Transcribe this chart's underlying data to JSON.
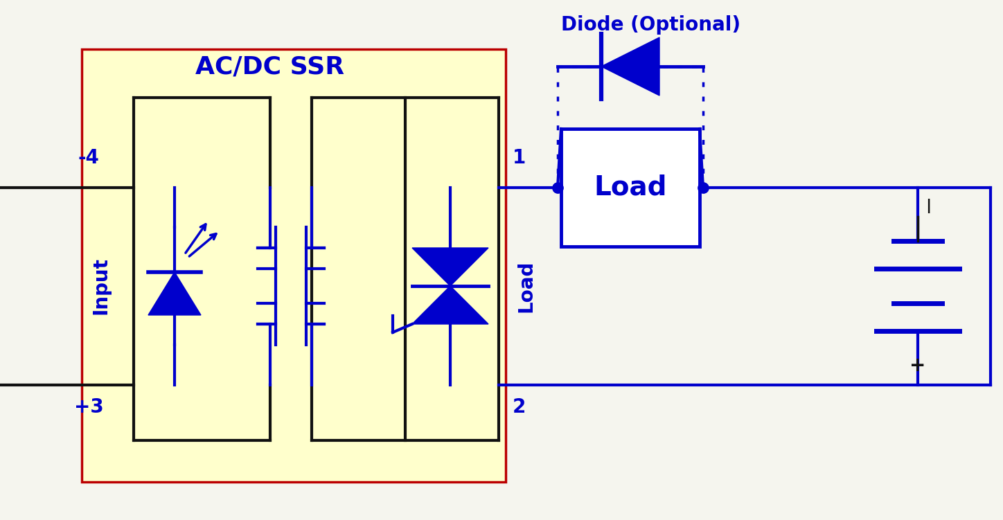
{
  "blue": "#0000CC",
  "black": "#111111",
  "red_border": "#BB0000",
  "yellow_fill": "#FFFFCC",
  "fig_bg": "#F5F5EE",
  "wire_lw": 3.0,
  "diode_label": "Diode (Optional)",
  "ssr_label": "AC/DC SSR",
  "input_label": "Input",
  "load_vert_label": "Load",
  "load_box_label": "Load",
  "minus4_label": "-4",
  "plus3_label": "+3",
  "label_1": "1",
  "label_2": "2"
}
